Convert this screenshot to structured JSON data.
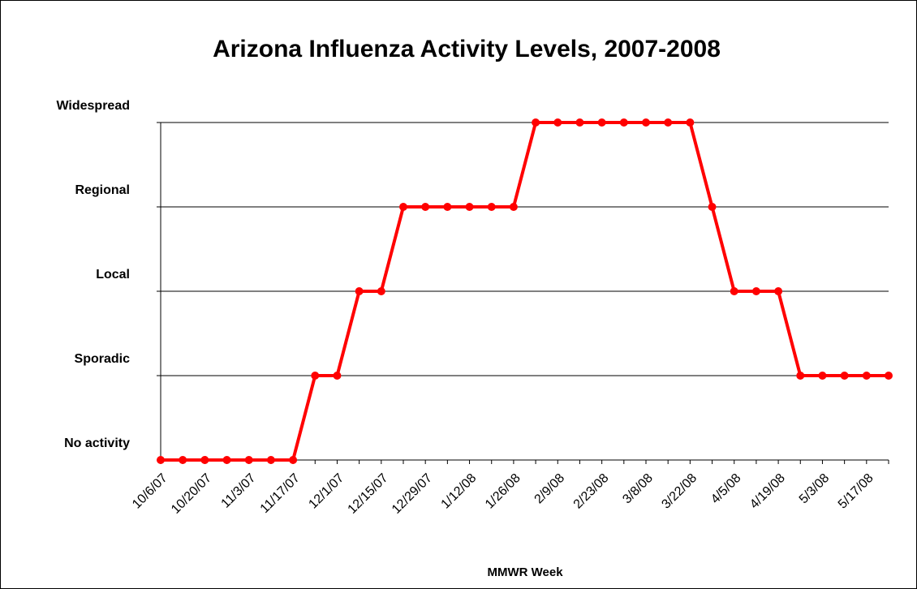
{
  "chart_data": {
    "type": "line",
    "title": "Arizona Influenza Activity Levels, 2007-2008",
    "x_label": "MMWR Week",
    "categories": [
      "10/6/07",
      null,
      "10/20/07",
      null,
      "11/3/07",
      null,
      "11/17/07",
      null,
      "12/1/07",
      null,
      "12/15/07",
      null,
      "12/29/07",
      null,
      "1/12/08",
      null,
      "1/26/08",
      null,
      "2/9/08",
      null,
      "2/23/08",
      null,
      "3/8/08",
      null,
      "3/22/08",
      null,
      "4/5/08",
      null,
      "4/19/08",
      null,
      "5/3/08",
      null,
      "5/17/08",
      null
    ],
    "values": [
      0,
      0,
      0,
      0,
      0,
      0,
      0,
      1,
      1,
      2,
      2,
      3,
      3,
      3,
      3,
      3,
      3,
      4,
      4,
      4,
      4,
      4,
      4,
      4,
      4,
      3,
      2,
      2,
      2,
      1,
      1,
      1,
      1,
      1
    ],
    "color": "#ff0000",
    "ylim": [
      0,
      4
    ],
    "yticks": [
      {
        "value": 0,
        "label": "No activity"
      },
      {
        "value": 1,
        "label": "Sporadic"
      },
      {
        "value": 2,
        "label": "Local"
      },
      {
        "value": 3,
        "label": "Regional"
      },
      {
        "value": 4,
        "label": "Widespread"
      }
    ],
    "grid": true
  }
}
